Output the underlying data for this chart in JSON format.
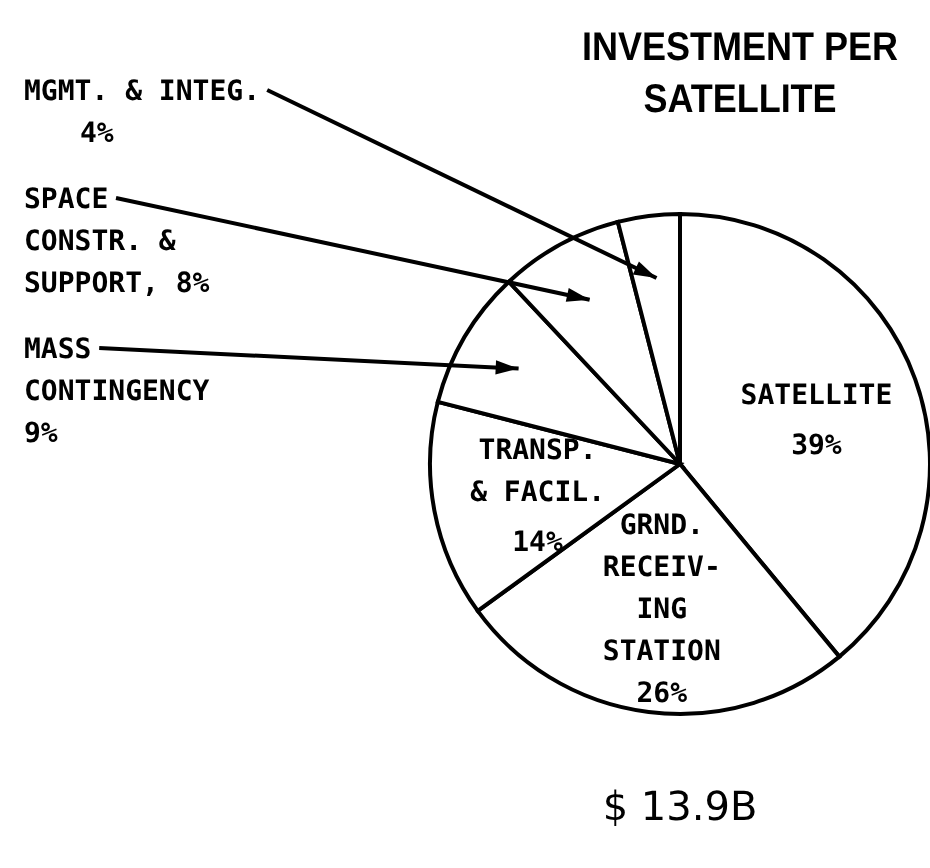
{
  "chart_data": {
    "type": "pie",
    "title": "INVESTMENT PER\nSATELLITE",
    "categories": [
      "SATELLITE",
      "GRND.\nRECEIV-\nING\nSTATION",
      "TRANSP.\n& FACIL.",
      "MASS\nCONTINGENCY",
      "SPACE\nCONSTR. &\nSUPPORT",
      "MGMT. & INTEG."
    ],
    "values": [
      39,
      26,
      14,
      9,
      8,
      4
    ],
    "value_labels": [
      "39%",
      "26%",
      "14%",
      "9%",
      ", 8%",
      "4%"
    ],
    "colors": [
      "#ffffff",
      "#ffffff",
      "#ffffff",
      "#ffffff",
      "#ffffff",
      "#ffffff"
    ],
    "annotations": [
      "$ 13.9B"
    ]
  }
}
